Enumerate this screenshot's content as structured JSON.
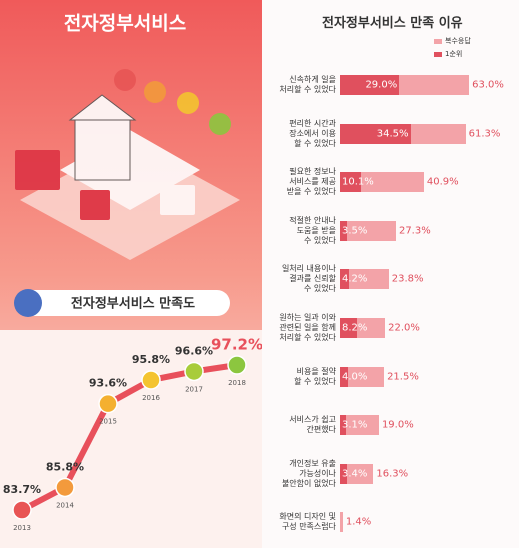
{
  "header": {
    "title": "전자정부서비스"
  },
  "chart_data": [
    {
      "type": "line",
      "title": "전자정부서비스 만족도",
      "x": [
        "2013",
        "2014",
        "2015",
        "2016",
        "2017",
        "2018"
      ],
      "values": [
        83.7,
        85.8,
        93.6,
        95.8,
        96.6,
        97.2
      ],
      "value_labels": [
        "83.7%",
        "85.8%",
        "93.6%",
        "95.8%",
        "96.6%",
        "97.2%"
      ],
      "color": "#e8505b"
    },
    {
      "type": "hbar",
      "title": "전자정부서비스 만족 이유",
      "categories": [
        "신속하게 일을\n처리할 수 있었다",
        "편리한 시간과\n장소에서 이용\n할 수 있었다",
        "필요한 정보나\n서비스를 제공\n받을 수 있었다",
        "적절한 안내나\n도움을 받을\n수 있었다",
        "일처리 내용이나\n결과를 신뢰할\n수 있었다",
        "원하는 일과 이와\n관련된 일을 함께\n처리할 수 있었다",
        "비용을 절약\n할 수 있었다",
        "서비스가 쉽고\n간편했다",
        "개인정보 유출\n가능성이나\n불안함이 없었다",
        "화면의 디자인 및\n구성 만족스럽다"
      ],
      "series": [
        {
          "name": "복수응답",
          "color": "#f3a3a8",
          "values": [
            63.0,
            61.3,
            40.9,
            27.3,
            23.8,
            22.0,
            21.5,
            19.0,
            16.3,
            1.4
          ],
          "value_labels": [
            "63.0%",
            "61.3%",
            "40.9%",
            "27.3%",
            "23.8%",
            "22.0%",
            "21.5%",
            "19.0%",
            "16.3%",
            "1.4%"
          ]
        },
        {
          "name": "1순위",
          "color": "#e0505e",
          "values": [
            29.0,
            34.5,
            10.1,
            3.5,
            4.2,
            8.2,
            4.0,
            3.1,
            3.4,
            null
          ],
          "value_labels": [
            "29.0%",
            "34.5%",
            "10.1%",
            "3.5%",
            "4.2%",
            "8.2%",
            "4.0%",
            "3.1%",
            "3.4%",
            null
          ]
        }
      ]
    }
  ]
}
